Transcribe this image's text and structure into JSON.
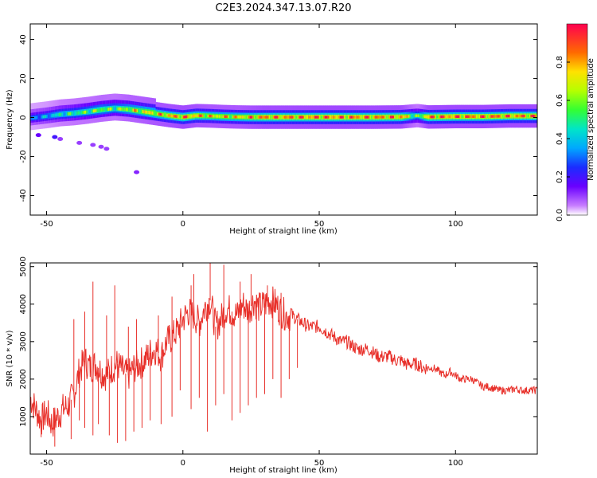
{
  "title": "C2E3.2024.347.13.07.R20",
  "chart_data": [
    {
      "type": "heatmap",
      "xlabel": "Height of straight line (km)",
      "ylabel": "Frequency (Hz)",
      "xlim": [
        -56,
        130
      ],
      "ylim": [
        -50,
        48
      ],
      "xticks": [
        -50,
        0,
        50,
        100
      ],
      "yticks": [
        -40,
        -20,
        0,
        20,
        40
      ],
      "colorbar": {
        "label": "Normalized spectral amplitude",
        "ticks": [
          "0.0",
          "0.2",
          "0.4",
          "0.6",
          "0.8"
        ],
        "range": [
          0,
          1
        ]
      },
      "ridge": {
        "x": [
          -56,
          -50,
          -45,
          -40,
          -35,
          -30,
          -25,
          -20,
          -15,
          -10,
          -5,
          0,
          5,
          10,
          15,
          20,
          25,
          30,
          40,
          50,
          60,
          70,
          80,
          86,
          90,
          100,
          110,
          120,
          130
        ],
        "freq": [
          -0.5,
          0.5,
          1.5,
          2.0,
          2.8,
          3.8,
          4.5,
          4.0,
          3.0,
          2.0,
          1.0,
          0.2,
          1.0,
          0.8,
          0.5,
          0.3,
          0.2,
          0.2,
          0.2,
          0.2,
          0.2,
          0.2,
          0.3,
          1.0,
          0.3,
          0.5,
          0.5,
          0.8,
          0.8
        ],
        "amp": [
          0.35,
          0.4,
          0.5,
          0.55,
          0.6,
          0.65,
          0.6,
          0.7,
          0.75,
          0.8,
          0.85,
          0.9,
          0.85,
          0.8,
          0.8,
          0.8,
          0.85,
          0.9,
          0.9,
          0.92,
          0.92,
          0.9,
          0.9,
          0.55,
          0.9,
          0.92,
          0.92,
          0.9,
          0.9
        ]
      },
      "scatter": [
        {
          "x": -53,
          "freq": -9,
          "amp": 0.15
        },
        {
          "x": -47,
          "freq": -10,
          "amp": 0.2
        },
        {
          "x": -45,
          "freq": -11,
          "amp": 0.1
        },
        {
          "x": -38,
          "freq": -13,
          "amp": 0.1
        },
        {
          "x": -33,
          "freq": -14,
          "amp": 0.1
        },
        {
          "x": -30,
          "freq": -15,
          "amp": 0.1
        },
        {
          "x": -28,
          "freq": -16,
          "amp": 0.1
        },
        {
          "x": -17,
          "freq": -28,
          "amp": 0.12
        }
      ]
    },
    {
      "type": "line",
      "xlabel": "Height of straight line (km)",
      "ylabel": "SNR (10 * v/v)",
      "xlim": [
        -56,
        130
      ],
      "ylim": [
        0,
        5100
      ],
      "xticks": [
        -50,
        0,
        50,
        100
      ],
      "yticks": [
        1000,
        2000,
        3000,
        4000,
        5000
      ],
      "color": "#e8302a",
      "series": [
        {
          "x": [
            -56,
            -54,
            -52,
            -50,
            -48,
            -46,
            -44,
            -42,
            -40,
            -38,
            -36,
            -34,
            -32,
            -30,
            -28,
            -26,
            -24,
            -22,
            -20,
            -18,
            -16,
            -14,
            -12,
            -10,
            -8,
            -6,
            -4,
            -2,
            0,
            2,
            4,
            6,
            8,
            10,
            12,
            14,
            16,
            18,
            20,
            22,
            24,
            26,
            28,
            30,
            32,
            34,
            36,
            38,
            40,
            42,
            44,
            46,
            48,
            50,
            52,
            54,
            56,
            58,
            60,
            62,
            64,
            66,
            68,
            70,
            72,
            74,
            76,
            78,
            80,
            82,
            84,
            86,
            88,
            90,
            92,
            94,
            96,
            98,
            100,
            102,
            104,
            106,
            108,
            110,
            112,
            114,
            116,
            118,
            120,
            122,
            124,
            126,
            128,
            130
          ],
          "values": [
            1500,
            1200,
            900,
            1100,
            800,
            1000,
            1200,
            1300,
            1600,
            2200,
            2500,
            2300,
            2400,
            2200,
            2100,
            2300,
            2400,
            2200,
            2100,
            2300,
            2400,
            2500,
            2700,
            2800,
            2600,
            3000,
            3100,
            3300,
            3600,
            3800,
            3700,
            3500,
            3900,
            4100,
            3400,
            3600,
            3900,
            3800,
            3700,
            4000,
            3800,
            4100,
            3900,
            4000,
            4100,
            4000,
            3800,
            3700,
            3700,
            3600,
            3500,
            3400,
            3400,
            3400,
            3300,
            3200,
            3100,
            3000,
            3000,
            2900,
            2800,
            2800,
            2800,
            2700,
            2600,
            2600,
            2600,
            2500,
            2500,
            2400,
            2400,
            2400,
            2300,
            2300,
            2300,
            2200,
            2100,
            2200,
            2100,
            2000,
            2000,
            2000,
            1900,
            1800,
            1800,
            1750,
            1700,
            1700,
            1700,
            1750,
            1700,
            1700,
            1700,
            1700
          ]
        }
      ],
      "dips": [
        {
          "x": -52,
          "value": 450
        },
        {
          "x": -47,
          "value": 200
        },
        {
          "x": -41,
          "value": 400
        },
        {
          "x": -38,
          "value": 900
        },
        {
          "x": -36,
          "value": 700
        },
        {
          "x": -33,
          "value": 500
        },
        {
          "x": -31,
          "value": 800
        },
        {
          "x": -27,
          "value": 500
        },
        {
          "x": -24,
          "value": 300
        },
        {
          "x": -21,
          "value": 350
        },
        {
          "x": -18,
          "value": 600
        },
        {
          "x": -15,
          "value": 700
        },
        {
          "x": -12,
          "value": 900
        },
        {
          "x": -8,
          "value": 800
        },
        {
          "x": -4,
          "value": 1000
        },
        {
          "x": -1,
          "value": 1700
        },
        {
          "x": 3,
          "value": 1200
        },
        {
          "x": 6,
          "value": 1500
        },
        {
          "x": 9,
          "value": 600
        },
        {
          "x": 12,
          "value": 1300
        },
        {
          "x": 15,
          "value": 1600
        },
        {
          "x": 18,
          "value": 900
        },
        {
          "x": 21,
          "value": 1100
        },
        {
          "x": 24,
          "value": 1300
        },
        {
          "x": 27,
          "value": 1500
        },
        {
          "x": 30,
          "value": 1600
        },
        {
          "x": 33,
          "value": 2000
        },
        {
          "x": 36,
          "value": 1500
        },
        {
          "x": 39,
          "value": 2000
        },
        {
          "x": 42,
          "value": 2300
        }
      ],
      "spikes": [
        {
          "x": -40,
          "value": 3600
        },
        {
          "x": -36,
          "value": 3800
        },
        {
          "x": -33,
          "value": 4600
        },
        {
          "x": -28,
          "value": 3700
        },
        {
          "x": -25,
          "value": 4500
        },
        {
          "x": -20,
          "value": 3400
        },
        {
          "x": -17,
          "value": 3600
        },
        {
          "x": -9,
          "value": 3700
        },
        {
          "x": -4,
          "value": 4200
        },
        {
          "x": 3,
          "value": 4500
        },
        {
          "x": 4,
          "value": 4800
        },
        {
          "x": 10,
          "value": 5100
        },
        {
          "x": 15,
          "value": 5050
        },
        {
          "x": 21,
          "value": 4600
        },
        {
          "x": 25,
          "value": 4800
        },
        {
          "x": 31,
          "value": 4500
        },
        {
          "x": 36,
          "value": 4300
        }
      ]
    }
  ]
}
